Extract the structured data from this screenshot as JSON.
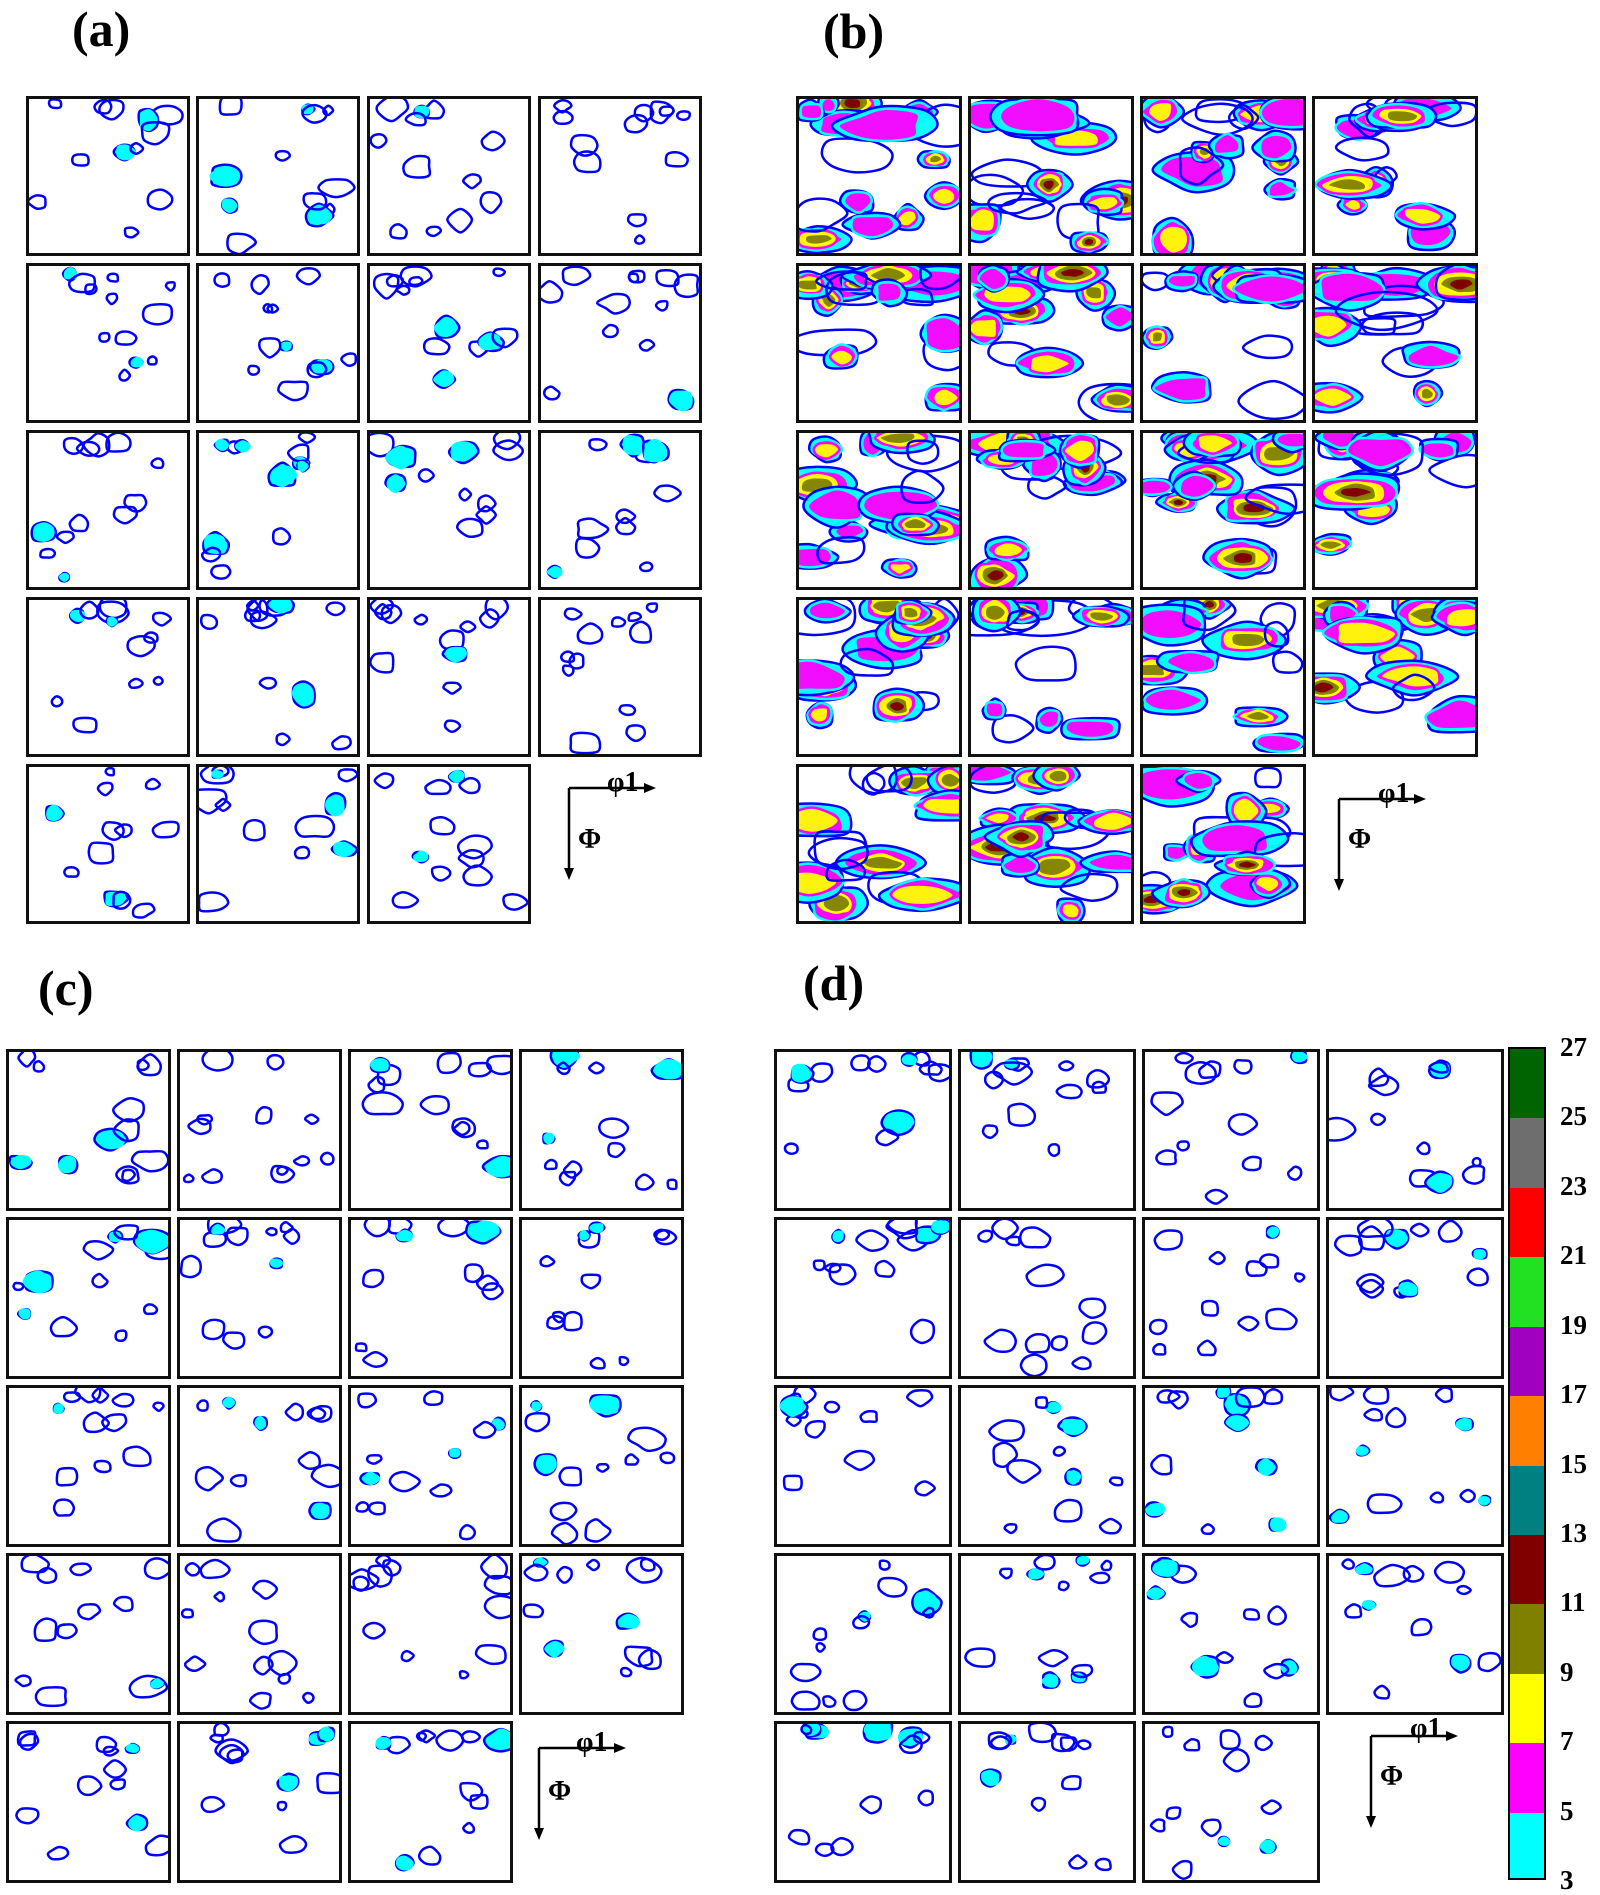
{
  "panels": [
    {
      "id": "a",
      "label": "(a)",
      "phi1_label": "φ1",
      "Phi_label": "Φ"
    },
    {
      "id": "b",
      "label": "(b)",
      "phi1_label": "φ1",
      "Phi_label": "Φ"
    },
    {
      "id": "c",
      "label": "(c)",
      "phi1_label": "φ1",
      "Phi_label": "Φ"
    },
    {
      "id": "d",
      "label": "(d)",
      "phi1_label": "φ1",
      "Phi_label": "Φ"
    }
  ],
  "colorbar": {
    "levels": [
      "27",
      "25",
      "23",
      "21",
      "19",
      "17",
      "15",
      "13",
      "11",
      "9",
      "7",
      "5",
      "3"
    ],
    "colors": [
      "#006400",
      "#6e6e6e",
      "#ff0000",
      "#22e022",
      "#a000c0",
      "#ff8000",
      "#008080",
      "#800000",
      "#808000",
      "#ffff00",
      "#ff00ff",
      "#00ffff",
      "#0000ff"
    ]
  },
  "contour_palette": {
    "a": [
      "#0000ff",
      "#00ffff"
    ],
    "b": [
      "#0000ff",
      "#00ffff",
      "#ff00ff",
      "#ffff00",
      "#808000",
      "#800000"
    ],
    "c": [
      "#0000ff",
      "#00ffff"
    ],
    "d": [
      "#0000ff",
      "#00ffff"
    ]
  }
}
